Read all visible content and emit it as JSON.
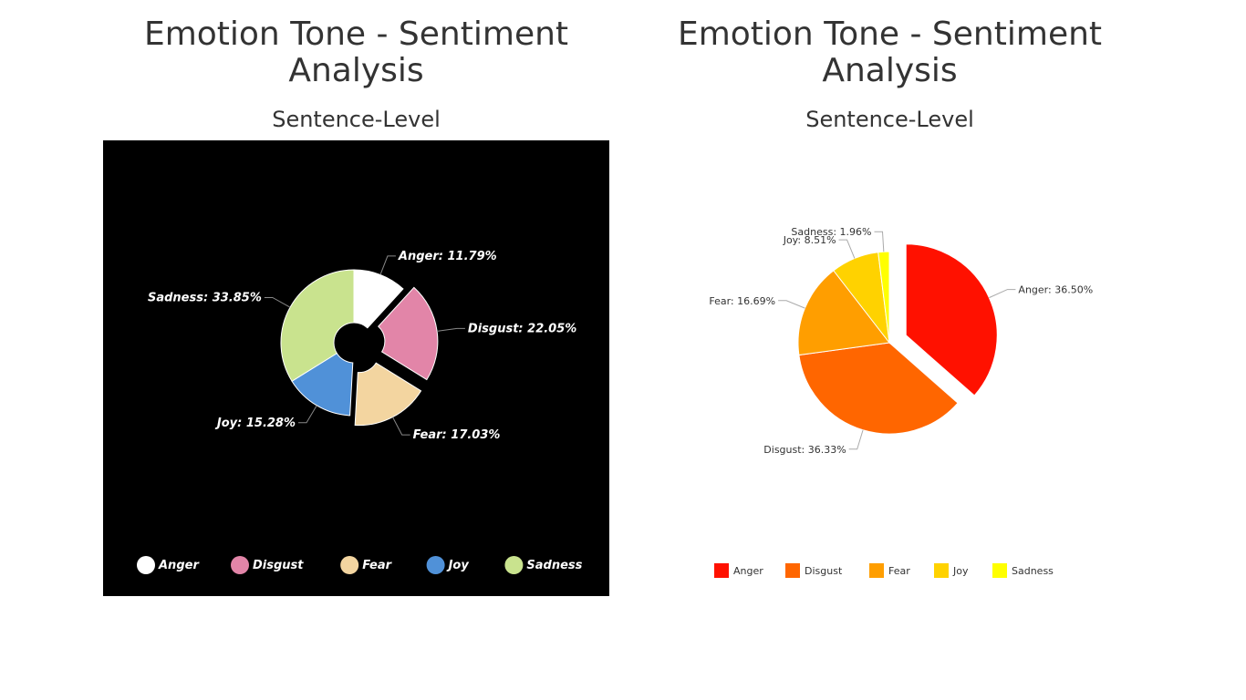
{
  "chart_data": [
    {
      "type": "pie",
      "style": "donut",
      "title": "Emotion Tone - Sentiment Analysis",
      "subtitle": "Sentence-Level",
      "background": "#000000",
      "legend_position": "bottom",
      "exploded": [
        "Disgust",
        "Fear"
      ],
      "categories": [
        "Anger",
        "Disgust",
        "Fear",
        "Joy",
        "Sadness"
      ],
      "values": [
        11.79,
        22.05,
        17.03,
        15.28,
        33.85
      ],
      "labels": [
        "Anger: 11.79%",
        "Disgust: 22.05%",
        "Fear: 17.03%",
        "Joy: 15.28%",
        "Sadness: 33.85%"
      ],
      "colors": [
        "#ffffff",
        "#e285a8",
        "#f3d5a0",
        "#5091d8",
        "#c9e38e"
      ]
    },
    {
      "type": "pie",
      "title": "Emotion Tone - Sentiment Analysis",
      "subtitle": "Sentence-Level",
      "background": "#ffffff",
      "legend_position": "bottom",
      "exploded": [
        "Anger"
      ],
      "categories": [
        "Anger",
        "Disgust",
        "Fear",
        "Joy",
        "Sadness"
      ],
      "values": [
        36.5,
        36.33,
        16.69,
        8.51,
        1.96
      ],
      "labels": [
        "Anger: 36.50%",
        "Disgust: 36.33%",
        "Fear: 16.69%",
        "Joy: 8.51%",
        "Sadness: 1.96%"
      ],
      "colors": [
        "#ff1100",
        "#ff6600",
        "#ff9e00",
        "#ffd200",
        "#ffff00"
      ]
    }
  ]
}
